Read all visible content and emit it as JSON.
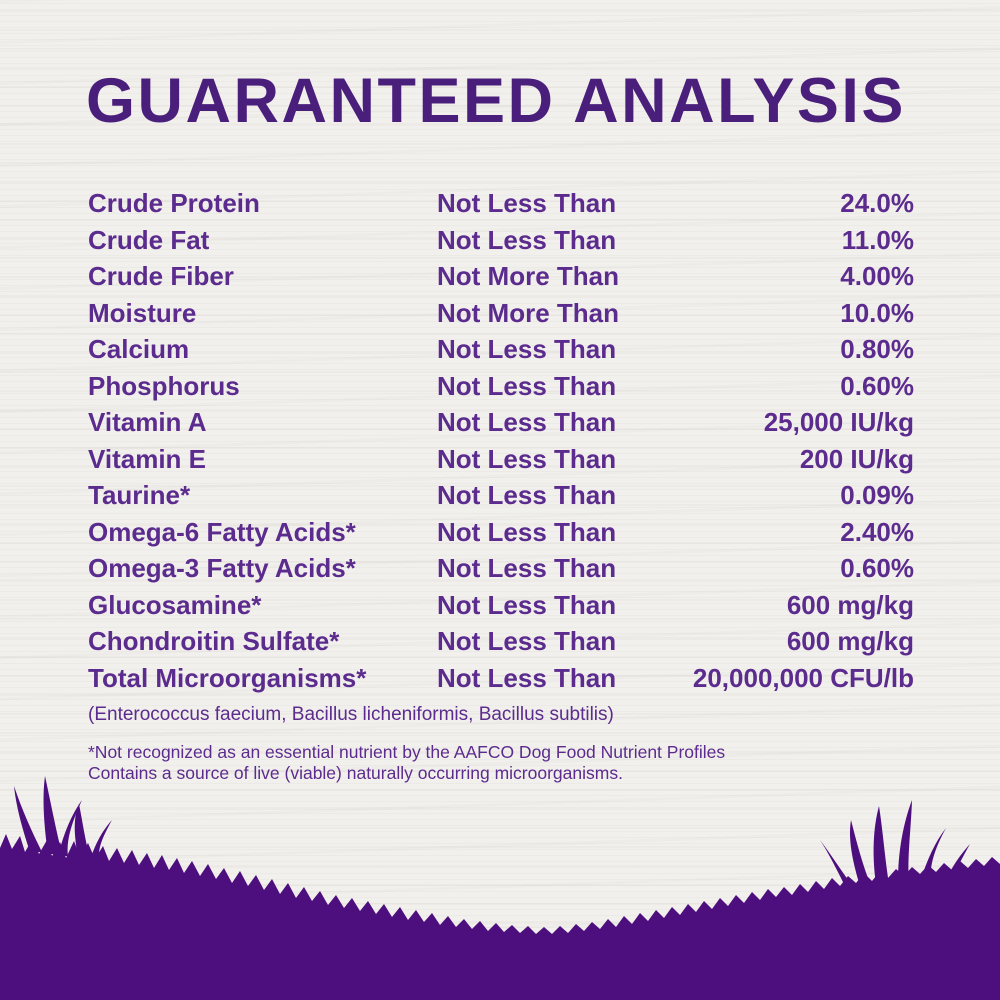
{
  "title": "GUARANTEED ANALYSIS",
  "colors": {
    "background": "#f2f0ed",
    "title": "#4a1f7b",
    "text": "#5b2b8e",
    "silhouette": "#4d0e7e"
  },
  "table": {
    "rows": [
      {
        "label": "Crude Protein",
        "condition": "Not Less Than",
        "value": "24.0%"
      },
      {
        "label": "Crude Fat",
        "condition": "Not Less Than",
        "value": "11.0%"
      },
      {
        "label": "Crude Fiber",
        "condition": "Not More Than",
        "value": "4.00%"
      },
      {
        "label": "Moisture",
        "condition": "Not More Than",
        "value": "10.0%"
      },
      {
        "label": "Calcium",
        "condition": "Not Less Than",
        "value": "0.80%"
      },
      {
        "label": "Phosphorus",
        "condition": "Not Less Than",
        "value": "0.60%"
      },
      {
        "label": "Vitamin A",
        "condition": "Not Less Than",
        "value": "25,000 IU/kg"
      },
      {
        "label": "Vitamin E",
        "condition": "Not Less Than",
        "value": "200 IU/kg"
      },
      {
        "label": "Taurine*",
        "condition": "Not Less Than",
        "value": "0.09%"
      },
      {
        "label": "Omega-6 Fatty Acids*",
        "condition": "Not Less Than",
        "value": "2.40%"
      },
      {
        "label": "Omega-3 Fatty Acids*",
        "condition": "Not Less Than",
        "value": "0.60%"
      },
      {
        "label": "Glucosamine*",
        "condition": "Not Less Than",
        "value": "600 mg/kg"
      },
      {
        "label": "Chondroitin Sulfate*",
        "condition": "Not Less Than",
        "value": "600 mg/kg"
      },
      {
        "label": "Total Microorganisms*",
        "condition": "Not Less Than",
        "value": "20,000,000 CFU/lb"
      }
    ]
  },
  "microorganisms_note": "(Enterococcus faecium, Bacillus licheniformis, Bacillus subtilis)",
  "footnotes": [
    "*Not recognized as an essential nutrient by the AAFCO Dog Food Nutrient Profiles",
    "Contains a source of live (viable) naturally occurring microorganisms."
  ]
}
